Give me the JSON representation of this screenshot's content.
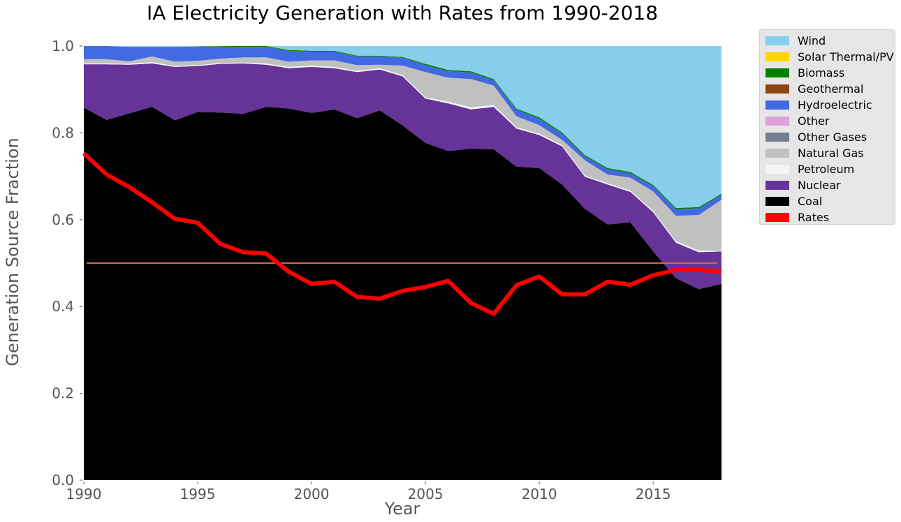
{
  "chart_data": {
    "type": "area",
    "title": "IA Electricity Generation with Rates from 1990-2018",
    "xlabel": "Year",
    "ylabel": "Generation Source Fraction",
    "xlim": [
      1989.7,
      2018
    ],
    "ylim": [
      0,
      1
    ],
    "xticks": [
      1990,
      1995,
      2000,
      2005,
      2010,
      2015
    ],
    "yticks": [
      0.0,
      0.2,
      0.4,
      0.6,
      0.8,
      1.0
    ],
    "ytick_labels": [
      "0.0",
      "0.2",
      "0.4",
      "0.6",
      "0.8",
      "1.0"
    ],
    "grid": false,
    "legend_position": "outside-right-top",
    "x": [
      1990,
      1991,
      1992,
      1993,
      1994,
      1995,
      1996,
      1997,
      1998,
      1999,
      2000,
      2001,
      2002,
      2003,
      2004,
      2005,
      2006,
      2007,
      2008,
      2009,
      2010,
      2011,
      2012,
      2013,
      2014,
      2015,
      2016,
      2017,
      2018
    ],
    "stacked_series": [
      {
        "name": "Coal",
        "color": "#000000",
        "values": [
          0.858,
          0.83,
          0.845,
          0.86,
          0.829,
          0.848,
          0.847,
          0.844,
          0.86,
          0.856,
          0.846,
          0.854,
          0.834,
          0.852,
          0.817,
          0.777,
          0.758,
          0.764,
          0.762,
          0.722,
          0.719,
          0.681,
          0.625,
          0.589,
          0.594,
          0.527,
          0.465,
          0.44,
          0.452
        ]
      },
      {
        "name": "Nuclear",
        "color": "#663399",
        "values": [
          0.1,
          0.128,
          0.112,
          0.1,
          0.123,
          0.106,
          0.112,
          0.116,
          0.097,
          0.093,
          0.106,
          0.095,
          0.106,
          0.094,
          0.113,
          0.102,
          0.11,
          0.09,
          0.098,
          0.088,
          0.076,
          0.088,
          0.074,
          0.092,
          0.07,
          0.09,
          0.082,
          0.085,
          0.075
        ]
      },
      {
        "name": "Petroleum",
        "color": "#f5f5f5",
        "values": [
          0.002,
          0.002,
          0.002,
          0.003,
          0.002,
          0.002,
          0.002,
          0.002,
          0.003,
          0.003,
          0.003,
          0.003,
          0.003,
          0.003,
          0.003,
          0.003,
          0.004,
          0.005,
          0.004,
          0.003,
          0.003,
          0.003,
          0.003,
          0.003,
          0.003,
          0.003,
          0.004,
          0.004,
          0.001
        ]
      },
      {
        "name": "Natural Gas",
        "color": "#c0c0c0",
        "values": [
          0.01,
          0.01,
          0.006,
          0.013,
          0.01,
          0.01,
          0.01,
          0.012,
          0.014,
          0.012,
          0.012,
          0.015,
          0.013,
          0.008,
          0.022,
          0.058,
          0.055,
          0.065,
          0.045,
          0.025,
          0.02,
          0.012,
          0.035,
          0.02,
          0.03,
          0.045,
          0.058,
          0.082,
          0.118
        ]
      },
      {
        "name": "Other Gases",
        "color": "#708090",
        "values": [
          0,
          0,
          0,
          0,
          0,
          0,
          0,
          0,
          0,
          0,
          0,
          0,
          0,
          0,
          0,
          0,
          0,
          0,
          0,
          0,
          0,
          0,
          0,
          0,
          0,
          0,
          0,
          0,
          0
        ]
      },
      {
        "name": "Other",
        "color": "#dda0dd",
        "values": [
          0,
          0,
          0,
          0,
          0,
          0,
          0,
          0,
          0,
          0,
          0,
          0,
          0,
          0,
          0,
          0,
          0,
          0,
          0,
          0,
          0,
          0,
          0,
          0,
          0,
          0,
          0,
          0,
          0
        ]
      },
      {
        "name": "Hydroelectric",
        "color": "#4169e1",
        "values": [
          0.03,
          0.03,
          0.033,
          0.022,
          0.034,
          0.032,
          0.028,
          0.024,
          0.024,
          0.025,
          0.02,
          0.02,
          0.02,
          0.019,
          0.018,
          0.016,
          0.015,
          0.015,
          0.012,
          0.015,
          0.015,
          0.014,
          0.009,
          0.012,
          0.01,
          0.012,
          0.015,
          0.015,
          0.011
        ]
      },
      {
        "name": "Geothermal",
        "color": "#8b4513",
        "values": [
          0,
          0,
          0,
          0,
          0,
          0,
          0,
          0,
          0,
          0,
          0,
          0,
          0,
          0,
          0,
          0,
          0,
          0,
          0,
          0,
          0,
          0,
          0,
          0,
          0,
          0,
          0,
          0,
          0
        ]
      },
      {
        "name": "Biomass",
        "color": "#008000",
        "values": [
          0.0,
          0.0,
          0.0,
          0.0,
          0.0,
          0.001,
          0.001,
          0.002,
          0.002,
          0.002,
          0.002,
          0.002,
          0.002,
          0.002,
          0.002,
          0.003,
          0.003,
          0.003,
          0.003,
          0.003,
          0.003,
          0.003,
          0.003,
          0.003,
          0.003,
          0.003,
          0.003,
          0.003,
          0.003
        ]
      },
      {
        "name": "Solar Thermal/PV",
        "color": "#ffd700",
        "values": [
          0,
          0,
          0,
          0,
          0,
          0,
          0,
          0,
          0,
          0,
          0,
          0,
          0,
          0,
          0,
          0,
          0,
          0,
          0,
          0,
          0,
          0,
          0,
          0,
          0,
          0,
          0,
          0,
          0
        ]
      },
      {
        "name": "Wind",
        "color": "#87ceeb",
        "values": [
          0.0,
          0.0,
          0.002,
          0.002,
          0.002,
          0.001,
          0.0,
          0.0,
          0.0,
          0.009,
          0.011,
          0.011,
          0.022,
          0.022,
          0.025,
          0.041,
          0.055,
          0.058,
          0.076,
          0.144,
          0.164,
          0.199,
          0.251,
          0.281,
          0.29,
          0.32,
          0.373,
          0.371,
          0.34
        ]
      }
    ],
    "rates": {
      "name": "Rates",
      "color": "#ff0000",
      "values": [
        0.753,
        0.704,
        0.675,
        0.64,
        0.602,
        0.593,
        0.544,
        0.525,
        0.522,
        0.48,
        0.452,
        0.457,
        0.422,
        0.418,
        0.436,
        0.445,
        0.459,
        0.408,
        0.383,
        0.449,
        0.469,
        0.428,
        0.428,
        0.457,
        0.45,
        0.472,
        0.484,
        0.484,
        0.481
      ]
    },
    "reference_line": {
      "value": 0.5,
      "color": "#cd6a4f",
      "x_range": [
        1990,
        2017.8
      ]
    },
    "legend": [
      {
        "label": "Wind",
        "color": "#87ceeb"
      },
      {
        "label": "Solar Thermal/PV",
        "color": "#ffd700"
      },
      {
        "label": "Biomass",
        "color": "#008000"
      },
      {
        "label": "Geothermal",
        "color": "#8b4513"
      },
      {
        "label": "Hydroelectric",
        "color": "#4169e1"
      },
      {
        "label": "Other",
        "color": "#dda0dd"
      },
      {
        "label": "Other Gases",
        "color": "#708090"
      },
      {
        "label": "Natural Gas",
        "color": "#c0c0c0"
      },
      {
        "label": "Petroleum",
        "color": "#f5f5f5"
      },
      {
        "label": "Nuclear",
        "color": "#663399"
      },
      {
        "label": "Coal",
        "color": "#000000"
      },
      {
        "label": "Rates",
        "color": "#ff0000"
      }
    ]
  }
}
